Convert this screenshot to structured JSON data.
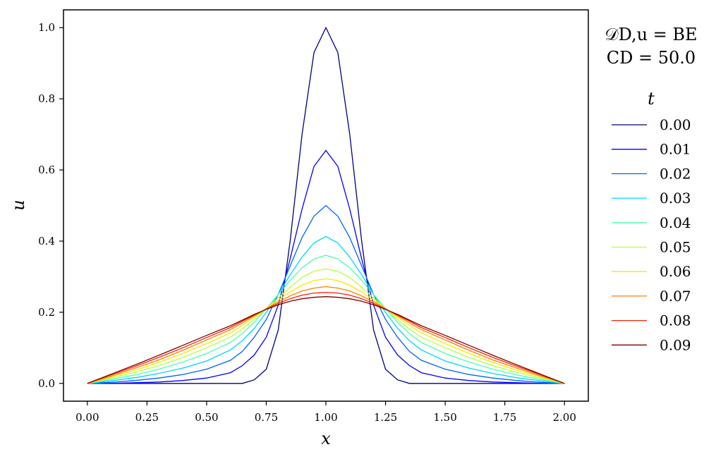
{
  "annotation": {
    "line1": "𝒟D,u = BE",
    "line2": "CD = 50.0"
  },
  "legend": {
    "title": "t",
    "placement": "right-outside"
  },
  "chart_data": {
    "type": "line",
    "xlabel": "x",
    "ylabel": "u",
    "xlim": [
      -0.1,
      2.1
    ],
    "ylim": [
      -0.05,
      1.05
    ],
    "xticks": [
      "0.00",
      "0.25",
      "0.50",
      "0.75",
      "1.00",
      "1.25",
      "1.50",
      "1.75",
      "2.00"
    ],
    "yticks": [
      "0.0",
      "0.2",
      "0.4",
      "0.6",
      "0.8",
      "1.0"
    ],
    "grid": false,
    "x": [
      0.0,
      0.1,
      0.2,
      0.3,
      0.4,
      0.5,
      0.6,
      0.65,
      0.7,
      0.75,
      0.8,
      0.85,
      0.9,
      0.95,
      1.0,
      1.05,
      1.1,
      1.15,
      1.2,
      1.25,
      1.3,
      1.35,
      1.4,
      1.5,
      1.6,
      1.7,
      1.8,
      1.9,
      2.0
    ],
    "series": [
      {
        "name": "0.00",
        "color": "#00007f",
        "values": [
          0.0,
          0.0,
          0.0,
          0.0,
          0.0,
          0.0,
          0.0,
          0.0,
          0.01,
          0.04,
          0.15,
          0.4,
          0.7,
          0.93,
          1.0,
          0.93,
          0.7,
          0.4,
          0.15,
          0.04,
          0.01,
          0.0,
          0.0,
          0.0,
          0.0,
          0.0,
          0.0,
          0.0,
          0.0
        ]
      },
      {
        "name": "0.01",
        "color": "#0000ff",
        "values": [
          0.0,
          0.0,
          0.002,
          0.004,
          0.008,
          0.015,
          0.03,
          0.05,
          0.08,
          0.13,
          0.22,
          0.35,
          0.49,
          0.61,
          0.655,
          0.61,
          0.49,
          0.35,
          0.22,
          0.13,
          0.08,
          0.05,
          0.03,
          0.015,
          0.008,
          0.004,
          0.002,
          0.0,
          0.0
        ]
      },
      {
        "name": "0.02",
        "color": "#0063ff",
        "values": [
          0.0,
          0.003,
          0.008,
          0.015,
          0.025,
          0.04,
          0.065,
          0.09,
          0.13,
          0.18,
          0.25,
          0.33,
          0.41,
          0.47,
          0.5,
          0.47,
          0.41,
          0.33,
          0.25,
          0.18,
          0.13,
          0.09,
          0.065,
          0.04,
          0.025,
          0.015,
          0.008,
          0.003,
          0.0
        ]
      },
      {
        "name": "0.03",
        "color": "#00d5ff",
        "values": [
          0.0,
          0.007,
          0.016,
          0.028,
          0.043,
          0.063,
          0.094,
          0.12,
          0.155,
          0.2,
          0.25,
          0.305,
          0.355,
          0.395,
          0.413,
          0.395,
          0.355,
          0.305,
          0.25,
          0.2,
          0.155,
          0.12,
          0.094,
          0.063,
          0.043,
          0.028,
          0.016,
          0.007,
          0.0
        ]
      },
      {
        "name": "0.04",
        "color": "#4dffaa",
        "values": [
          0.0,
          0.011,
          0.024,
          0.04,
          0.06,
          0.084,
          0.115,
          0.14,
          0.172,
          0.21,
          0.25,
          0.29,
          0.325,
          0.35,
          0.36,
          0.35,
          0.325,
          0.29,
          0.25,
          0.21,
          0.172,
          0.14,
          0.115,
          0.084,
          0.06,
          0.04,
          0.024,
          0.011,
          0.0
        ]
      },
      {
        "name": "0.05",
        "color": "#b4ff43",
        "values": [
          0.0,
          0.015,
          0.031,
          0.05,
          0.073,
          0.1,
          0.13,
          0.153,
          0.18,
          0.21,
          0.24,
          0.27,
          0.298,
          0.315,
          0.322,
          0.315,
          0.298,
          0.27,
          0.24,
          0.21,
          0.18,
          0.153,
          0.13,
          0.1,
          0.073,
          0.05,
          0.031,
          0.015,
          0.0
        ]
      },
      {
        "name": "0.06",
        "color": "#ffe600",
        "values": [
          0.0,
          0.018,
          0.037,
          0.059,
          0.084,
          0.112,
          0.142,
          0.163,
          0.186,
          0.21,
          0.234,
          0.257,
          0.276,
          0.289,
          0.294,
          0.289,
          0.276,
          0.257,
          0.234,
          0.21,
          0.186,
          0.163,
          0.142,
          0.112,
          0.084,
          0.059,
          0.037,
          0.018,
          0.0
        ]
      },
      {
        "name": "0.07",
        "color": "#ff7f00",
        "values": [
          0.0,
          0.021,
          0.043,
          0.066,
          0.093,
          0.122,
          0.151,
          0.17,
          0.19,
          0.21,
          0.229,
          0.246,
          0.26,
          0.268,
          0.272,
          0.268,
          0.26,
          0.246,
          0.229,
          0.21,
          0.19,
          0.17,
          0.151,
          0.122,
          0.093,
          0.066,
          0.043,
          0.021,
          0.0
        ]
      },
      {
        "name": "0.08",
        "color": "#ff2000",
        "values": [
          0.0,
          0.024,
          0.048,
          0.073,
          0.1,
          0.129,
          0.157,
          0.175,
          0.192,
          0.209,
          0.225,
          0.238,
          0.248,
          0.254,
          0.256,
          0.254,
          0.248,
          0.238,
          0.225,
          0.209,
          0.192,
          0.175,
          0.157,
          0.129,
          0.1,
          0.073,
          0.048,
          0.024,
          0.0
        ]
      },
      {
        "name": "0.09",
        "color": "#7f0000",
        "values": [
          0.0,
          0.026,
          0.052,
          0.079,
          0.107,
          0.135,
          0.162,
          0.178,
          0.194,
          0.208,
          0.221,
          0.231,
          0.238,
          0.242,
          0.244,
          0.242,
          0.238,
          0.231,
          0.221,
          0.208,
          0.194,
          0.178,
          0.162,
          0.135,
          0.107,
          0.079,
          0.052,
          0.026,
          0.0
        ]
      }
    ]
  }
}
